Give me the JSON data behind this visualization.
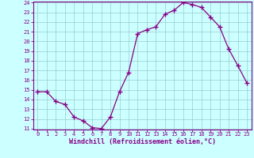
{
  "x": [
    0,
    1,
    2,
    3,
    4,
    5,
    6,
    7,
    8,
    9,
    10,
    11,
    12,
    13,
    14,
    15,
    16,
    17,
    18,
    19,
    20,
    21,
    22,
    23
  ],
  "y": [
    14.8,
    14.8,
    13.8,
    13.5,
    12.2,
    11.8,
    11.1,
    11.0,
    12.2,
    14.8,
    16.8,
    20.8,
    21.2,
    21.5,
    22.8,
    23.2,
    24.0,
    23.8,
    23.5,
    22.5,
    21.5,
    19.2,
    17.5,
    15.7
  ],
  "line_color": "#880088",
  "marker": "+",
  "marker_size": 4,
  "bg_color": "#ccffff",
  "grid_color": "#99cccc",
  "xlabel": "Windchill (Refroidissement éolien,°C)",
  "ylim": [
    11,
    24
  ],
  "xlim": [
    -0.5,
    23.5
  ],
  "yticks": [
    11,
    12,
    13,
    14,
    15,
    16,
    17,
    18,
    19,
    20,
    21,
    22,
    23,
    24
  ],
  "xticks": [
    0,
    1,
    2,
    3,
    4,
    5,
    6,
    7,
    8,
    9,
    10,
    11,
    12,
    13,
    14,
    15,
    16,
    17,
    18,
    19,
    20,
    21,
    22,
    23
  ],
  "tick_fontsize": 5.0,
  "label_fontsize": 6.0,
  "line_width": 0.9,
  "spine_color": "#880088"
}
